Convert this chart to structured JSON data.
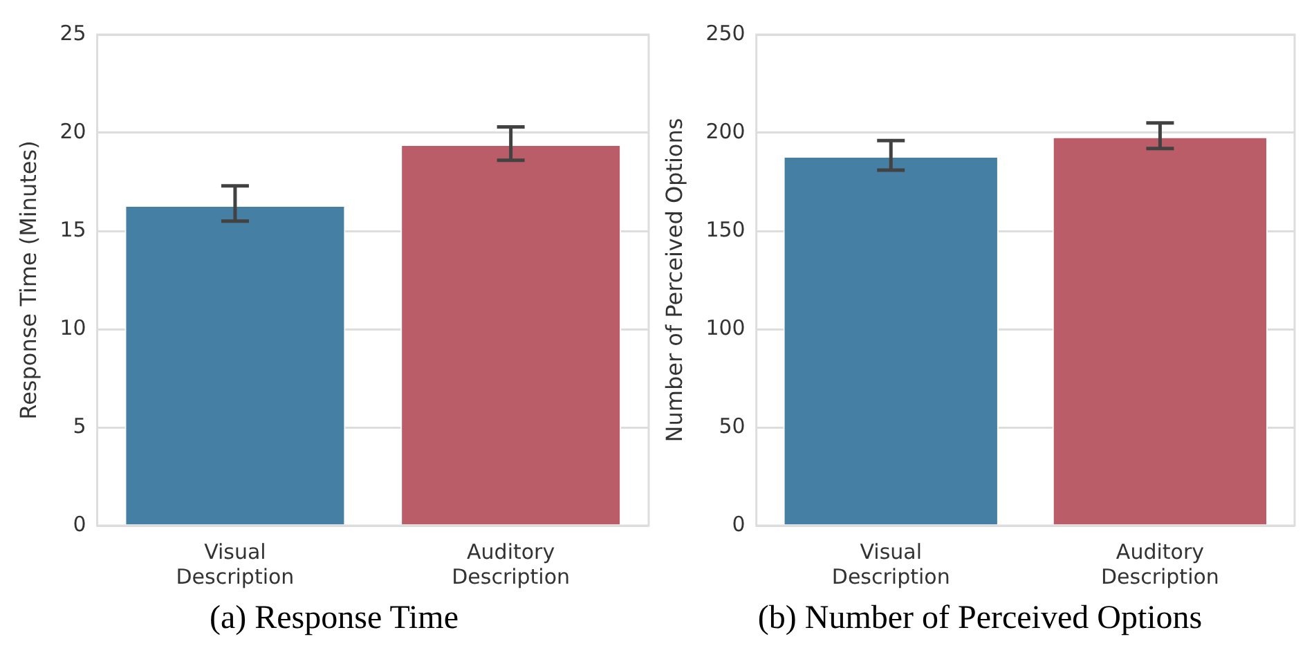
{
  "chart_data": [
    {
      "type": "bar",
      "title": "(a) Response Time",
      "ylabel": "Response Time (Minutes)",
      "categories": [
        "Visual Description",
        "Auditory Description"
      ],
      "values": [
        16.3,
        19.4
      ],
      "colors": [
        "#457fa3",
        "#bb5d68"
      ],
      "errors": [
        [
          15.5,
          17.3
        ],
        [
          18.6,
          20.3
        ]
      ],
      "ylim": [
        0,
        25
      ],
      "yticks": [
        0,
        5,
        10,
        15,
        20,
        25
      ],
      "grid": "y",
      "legend": false
    },
    {
      "type": "bar",
      "title": "(b) Number of Perceived Options",
      "ylabel": "Number of Perceived Options",
      "categories": [
        "Visual Description",
        "Auditory Description"
      ],
      "values": [
        188,
        198
      ],
      "colors": [
        "#457fa3",
        "#bb5d68"
      ],
      "errors": [
        [
          181,
          196
        ],
        [
          192,
          205
        ]
      ],
      "ylim": [
        0,
        250
      ],
      "yticks": [
        0,
        50,
        100,
        150,
        200,
        250
      ],
      "grid": "y",
      "legend": false
    }
  ]
}
